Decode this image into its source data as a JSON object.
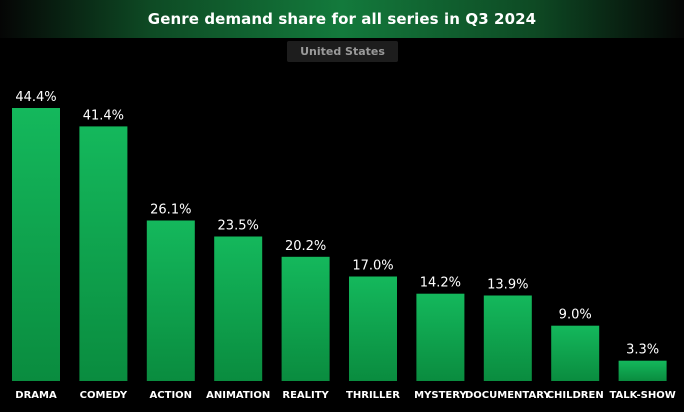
{
  "chart_data": {
    "type": "bar",
    "title": "Genre demand share for all series in Q3 2024",
    "subtitle": "United States",
    "categories": [
      "DRAMA",
      "COMEDY",
      "ACTION",
      "ANIMATION",
      "REALITY",
      "THRILLER",
      "MYSTERY",
      "DOCUMENTARY",
      "CHILDREN",
      "TALK-SHOW"
    ],
    "values": [
      44.4,
      41.4,
      26.1,
      23.5,
      20.2,
      17.0,
      14.2,
      13.9,
      9.0,
      3.3
    ],
    "value_labels": [
      "44.4%",
      "41.4%",
      "26.1%",
      "23.5%",
      "20.2%",
      "17.0%",
      "14.2%",
      "13.9%",
      "9.0%",
      "3.3%"
    ],
    "ylim": [
      0,
      44.4
    ],
    "grid": false,
    "legend": "none",
    "colors": {
      "bar_top": "#14b85c",
      "bar_bottom": "#0a8c3f",
      "background": "#000000",
      "text": "#ffffff"
    }
  }
}
